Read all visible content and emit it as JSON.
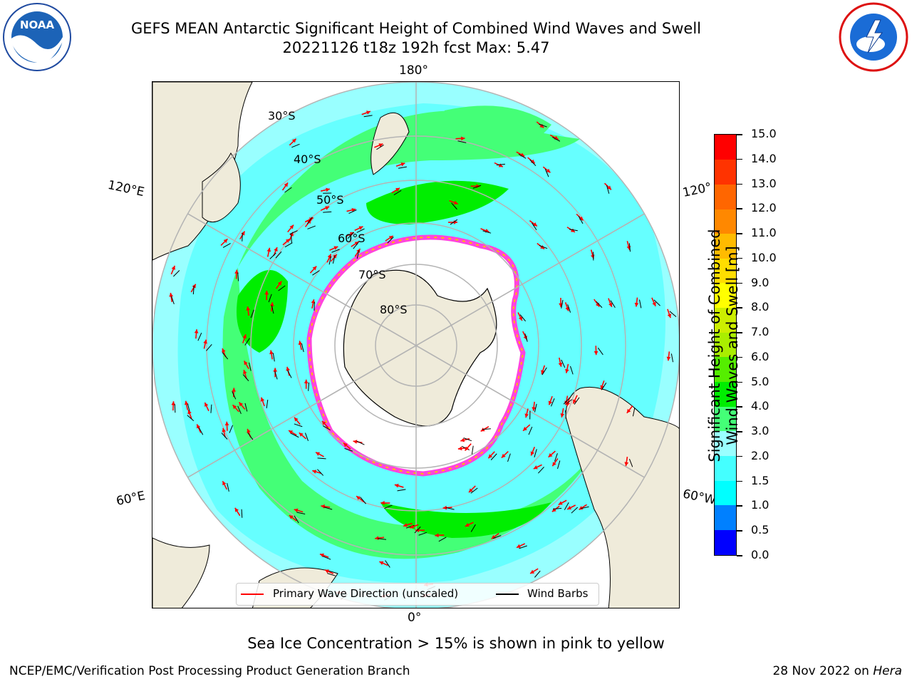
{
  "title": {
    "line1": "GEFS MEAN Antarctic Significant Height of Combined Wind Waves and Swell",
    "line2": "20221126 t18z 192h fcst   Max: 5.47"
  },
  "logos": {
    "left": "noaa-logo",
    "right": "nws-logo",
    "noaa_text": "NOAA"
  },
  "map": {
    "lon_labels": {
      "top": "180°",
      "bottom": "0°",
      "left_upper": "120°E",
      "left_lower": "60°E",
      "right_upper": "120°",
      "right_lower": "60°W"
    },
    "lat_labels": [
      "30°S",
      "40°S",
      "50°S",
      "60°S",
      "70°S",
      "80°S"
    ],
    "colors": {
      "land": "#efebda",
      "ice": "#ffffff",
      "ice_edge": "#ff44dd",
      "grid": "#b4b4b4",
      "wave_arrow": "#ff0000",
      "wind_barb": "#000000"
    }
  },
  "colorbar": {
    "ticks": [
      "0.0",
      "0.5",
      "1.0",
      "1.5",
      "2.0",
      "3.0",
      "4.0",
      "5.0",
      "6.0",
      "7.0",
      "8.0",
      "9.0",
      "10.0",
      "11.0",
      "12.0",
      "13.0",
      "14.0",
      "15.0"
    ],
    "colors": [
      "#0000ff",
      "#0080ff",
      "#00ffff",
      "#44ffff",
      "#99ffff",
      "#44ff77",
      "#00ee00",
      "#55ee00",
      "#aaee00",
      "#ccee00",
      "#ffff00",
      "#ffdd00",
      "#ffbb00",
      "#ff8800",
      "#ff6600",
      "#ff3300",
      "#ff0000"
    ],
    "label_line1": "Significant Height of Combined",
    "label_line2": "Wind Waves and Swell [m]"
  },
  "legend": {
    "wave": "Primary Wave Direction (unscaled)",
    "wind": "Wind Barbs"
  },
  "note": "Sea Ice Concentration > 15% is shown in pink to yellow",
  "footer": {
    "left": "NCEP/EMC/Verification Post Processing Product Generation Branch",
    "right_date": "28 Nov 2022 on ",
    "right_host": "Hera"
  }
}
